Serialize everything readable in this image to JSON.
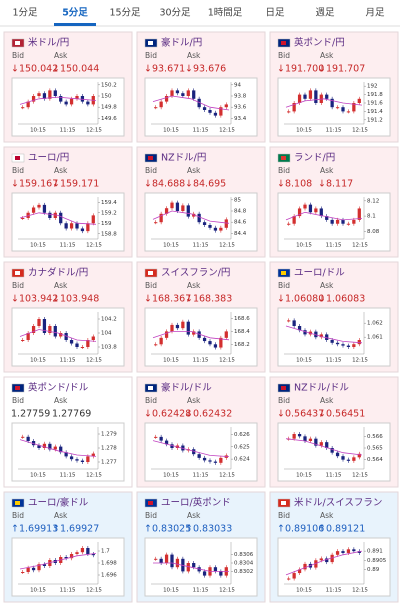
{
  "tabs": [
    "1分足",
    "5分足",
    "15分足",
    "30分足",
    "1時間足",
    "日足",
    "週足",
    "月足"
  ],
  "active_tab": 1,
  "cards": [
    {
      "name": "米ドル/円",
      "bid_label": "Bid",
      "ask_label": "Ask",
      "bid": "↓150.042",
      "ask": "↓150.044",
      "color": "#c62828",
      "background": "#fdeef0",
      "chart": {
        "ylim": [
          149.5,
          150.25
        ],
        "yticks": [
          150.2,
          150,
          149.8,
          149.6
        ],
        "xticks": [
          "10:15",
          "11:15",
          "12:15"
        ],
        "closes": [
          149.8,
          149.9,
          150.0,
          150.05,
          149.95,
          150.1,
          150.0,
          149.9,
          149.85,
          149.95,
          150.0,
          149.9,
          149.85,
          150.0
        ],
        "ma": [
          149.85,
          149.95,
          149.98,
          149.95,
          149.92
        ]
      }
    },
    {
      "name": "豪ドル/円",
      "bid_label": "Bid",
      "ask_label": "Ask",
      "bid": "↓93.671",
      "ask": "↓93.676",
      "color": "#c62828",
      "background": "#fdeef0",
      "chart": {
        "ylim": [
          93.3,
          94.05
        ],
        "yticks": [
          94,
          93.8,
          93.6,
          93.4
        ],
        "xticks": [
          "10:15",
          "11:15",
          "12:15"
        ],
        "closes": [
          93.6,
          93.7,
          93.8,
          93.9,
          93.85,
          93.8,
          93.9,
          93.75,
          93.6,
          93.55,
          93.5,
          93.45,
          93.6,
          93.65
        ],
        "ma": [
          93.7,
          93.8,
          93.75,
          93.6,
          93.55
        ]
      }
    },
    {
      "name": "英ポンド/円",
      "bid_label": "Bid",
      "ask_label": "Ask",
      "bid": "↓191.700",
      "ask": "↓191.707",
      "color": "#c62828",
      "background": "#fdeef0",
      "chart": {
        "ylim": [
          191.1,
          192.1
        ],
        "yticks": [
          192,
          191.8,
          191.6,
          191.4,
          191.2
        ],
        "xticks": [
          "10:15",
          "11:15",
          "12:15"
        ],
        "closes": [
          191.4,
          191.6,
          191.8,
          191.7,
          191.9,
          191.6,
          191.8,
          191.7,
          191.5,
          191.5,
          191.4,
          191.4,
          191.6,
          191.7
        ],
        "ma": [
          191.5,
          191.65,
          191.7,
          191.6,
          191.55
        ]
      }
    },
    {
      "name": "ユーロ/円",
      "bid_label": "Bid",
      "ask_label": "Ask",
      "bid": "↓159.167",
      "ask": "↓159.171",
      "color": "#c62828",
      "background": "#fdeef0",
      "chart": {
        "ylim": [
          158.7,
          159.5
        ],
        "yticks": [
          159.4,
          159.2,
          159,
          158.8
        ],
        "xticks": [
          "10:15",
          "11:15",
          "12:15"
        ],
        "closes": [
          159.1,
          159.2,
          159.3,
          159.35,
          159.2,
          159.1,
          159.2,
          159.0,
          158.9,
          159.0,
          158.9,
          158.85,
          159.0,
          159.15
        ],
        "ma": [
          159.1,
          159.2,
          159.15,
          159.0,
          158.98
        ]
      }
    },
    {
      "name": "NZドル/円",
      "bid_label": "Bid",
      "ask_label": "Ask",
      "bid": "↓84.688",
      "ask": "↓84.695",
      "color": "#c62828",
      "background": "#fdeef0",
      "chart": {
        "ylim": [
          84.3,
          85.05
        ],
        "yticks": [
          85,
          84.8,
          84.6,
          84.4
        ],
        "xticks": [
          "10:15",
          "11:15",
          "12:15"
        ],
        "closes": [
          84.6,
          84.75,
          84.85,
          84.95,
          84.8,
          84.9,
          84.7,
          84.75,
          84.6,
          84.55,
          84.5,
          84.45,
          84.5,
          84.65
        ],
        "ma": [
          84.65,
          84.8,
          84.75,
          84.62,
          84.58
        ]
      }
    },
    {
      "name": "ランド/円",
      "bid_label": "Bid",
      "ask_label": "Ask",
      "bid": "↓8.108",
      "ask": "↓8.117",
      "color": "#c62828",
      "background": "#fdeef0",
      "chart": {
        "ylim": [
          8.07,
          8.125
        ],
        "yticks": [
          8.12,
          8.1,
          8.08
        ],
        "xticks": [
          "10:15",
          "11:15",
          "12:15"
        ],
        "closes": [
          8.09,
          8.1,
          8.11,
          8.115,
          8.105,
          8.11,
          8.1,
          8.095,
          8.09,
          8.095,
          8.09,
          8.09,
          8.095,
          8.11
        ],
        "ma": [
          8.095,
          8.105,
          8.1,
          8.095,
          8.097
        ]
      }
    },
    {
      "name": "カナダドル/円",
      "bid_label": "Bid",
      "ask_label": "Ask",
      "bid": "↓103.942",
      "ask": "↓103.948",
      "color": "#c62828",
      "background": "#fdeef0",
      "chart": {
        "ylim": [
          103.7,
          104.3
        ],
        "yticks": [
          104.2,
          104,
          103.8
        ],
        "xticks": [
          "10:15",
          "11:15",
          "12:15"
        ],
        "closes": [
          103.9,
          104.0,
          104.1,
          104.2,
          104.0,
          104.1,
          103.95,
          104.0,
          103.9,
          103.85,
          103.8,
          103.8,
          103.9,
          103.95
        ],
        "ma": [
          103.95,
          104.05,
          104.0,
          103.9,
          103.88
        ]
      }
    },
    {
      "name": "スイスフラン/円",
      "bid_label": "Bid",
      "ask_label": "Ask",
      "bid": "↓168.367",
      "ask": "↓168.383",
      "color": "#c62828",
      "background": "#fdeef0",
      "chart": {
        "ylim": [
          168.05,
          168.7
        ],
        "yticks": [
          168.6,
          168.4,
          168.2
        ],
        "xticks": [
          "10:15",
          "11:15",
          "12:15"
        ],
        "closes": [
          168.2,
          168.3,
          168.4,
          168.5,
          168.45,
          168.55,
          168.35,
          168.4,
          168.3,
          168.25,
          168.2,
          168.15,
          168.3,
          168.4
        ],
        "ma": [
          168.3,
          168.4,
          168.4,
          168.3,
          168.27
        ]
      }
    },
    {
      "name": "ユーロ/ドル",
      "bid_label": "Bid",
      "ask_label": "Ask",
      "bid": "↓1.06080",
      "ask": "↓1.06083",
      "color": "#c62828",
      "background": "#fdeef0",
      "chart": {
        "ylim": [
          1.0598,
          1.0628
        ],
        "yticks": [
          1.062,
          1.061
        ],
        "xticks": [
          "10:15",
          "11:15",
          "12:15"
        ],
        "closes": [
          1.0622,
          1.0618,
          1.0615,
          1.0612,
          1.0614,
          1.061,
          1.0612,
          1.0608,
          1.0606,
          1.0605,
          1.0604,
          1.0603,
          1.0605,
          1.0608
        ],
        "ma": [
          1.0618,
          1.0614,
          1.061,
          1.0607,
          1.0606
        ]
      }
    },
    {
      "name": "英ポンド/ドル",
      "bid_label": "Bid",
      "ask_label": "Ask",
      "bid": "1.27759",
      "ask": "1.27769",
      "color": "#333333",
      "background": "#ffffff",
      "chart": {
        "ylim": [
          1.2765,
          1.2795
        ],
        "yticks": [
          1.279,
          1.278,
          1.277
        ],
        "xticks": [
          "10:15",
          "11:15",
          "12:15"
        ],
        "closes": [
          1.2788,
          1.2785,
          1.2782,
          1.278,
          1.2783,
          1.2779,
          1.2781,
          1.2777,
          1.2774,
          1.2772,
          1.2771,
          1.277,
          1.2774,
          1.2776
        ],
        "ma": [
          1.2786,
          1.2782,
          1.2778,
          1.2775,
          1.2774
        ]
      }
    },
    {
      "name": "豪ドル/ドル",
      "bid_label": "Bid",
      "ask_label": "Ask",
      "bid": "↓0.62428",
      "ask": "↓0.62432",
      "color": "#c62828",
      "background": "#fdeef0",
      "chart": {
        "ylim": [
          0.6232,
          0.6266
        ],
        "yticks": [
          0.626,
          0.625,
          0.624
        ],
        "xticks": [
          "10:15",
          "11:15",
          "12:15"
        ],
        "closes": [
          0.6258,
          0.6255,
          0.6252,
          0.6249,
          0.6251,
          0.6247,
          0.6248,
          0.6244,
          0.6241,
          0.6239,
          0.6238,
          0.6237,
          0.6241,
          0.6243
        ],
        "ma": [
          0.6255,
          0.6251,
          0.6247,
          0.6243,
          0.6242
        ]
      }
    },
    {
      "name": "NZドル/ドル",
      "bid_label": "Bid",
      "ask_label": "Ask",
      "bid": "↓0.56437",
      "ask": "↓0.56451",
      "color": "#c62828",
      "background": "#fdeef0",
      "chart": {
        "ylim": [
          0.5632,
          0.5668
        ],
        "yticks": [
          0.566,
          0.565,
          0.564
        ],
        "xticks": [
          "10:15",
          "11:15",
          "12:15"
        ],
        "closes": [
          0.5658,
          0.5662,
          0.566,
          0.5656,
          0.5658,
          0.5652,
          0.5655,
          0.565,
          0.5646,
          0.5643,
          0.564,
          0.5639,
          0.5642,
          0.5645
        ],
        "ma": [
          0.5658,
          0.5656,
          0.5651,
          0.5646,
          0.5644
        ]
      }
    },
    {
      "name": "ユーロ/豪ドル",
      "bid_label": "Bid",
      "ask_label": "Ask",
      "bid": "↑1.69913",
      "ask": "↑1.69927",
      "color": "#1e5fbf",
      "background": "#e8f3fc",
      "chart": {
        "ylim": [
          1.6945,
          1.7015
        ],
        "yticks": [
          1.7,
          1.698,
          1.696
        ],
        "xticks": [
          "10:15",
          "11:15",
          "12:15"
        ],
        "closes": [
          1.6965,
          1.6972,
          1.6968,
          1.6978,
          1.6975,
          1.6985,
          1.698,
          1.699,
          1.6988,
          1.6995,
          1.6998,
          1.7005,
          1.6995,
          1.6993
        ],
        "ma": [
          1.697,
          1.6976,
          1.6984,
          1.6992,
          1.6996
        ]
      }
    },
    {
      "name": "ユーロ/英ポンド",
      "bid_label": "Bid",
      "ask_label": "Ask",
      "bid": "↑0.83025",
      "ask": "↑0.83033",
      "color": "#1e5fbf",
      "background": "#e8f3fc",
      "chart": {
        "ylim": [
          0.8299,
          0.8309
        ],
        "yticks": [
          0.8306,
          0.8304,
          0.8302
        ],
        "xticks": [
          "10:15",
          "11:15",
          "12:15"
        ],
        "closes": [
          0.8305,
          0.8304,
          0.8306,
          0.8303,
          0.8305,
          0.8302,
          0.8304,
          0.8303,
          0.8302,
          0.8301,
          0.8303,
          0.8302,
          0.8301,
          0.8303
        ],
        "ma": [
          0.8304,
          0.8304,
          0.8303,
          0.8302,
          0.8302
        ]
      }
    },
    {
      "name": "米ドル/スイスフラン",
      "bid_label": "Bid",
      "ask_label": "Ask",
      "bid": "↑0.89106",
      "ask": "↑0.89121",
      "color": "#1e5fbf",
      "background": "#e8f3fc",
      "chart": {
        "ylim": [
          0.8892,
          0.8915
        ],
        "yticks": [
          0.891,
          0.8905,
          0.89
        ],
        "xticks": [
          "10:15",
          "11:15",
          "12:15"
        ],
        "closes": [
          0.8895,
          0.8898,
          0.89,
          0.8903,
          0.8901,
          0.8905,
          0.8906,
          0.8904,
          0.8908,
          0.891,
          0.8909,
          0.8911,
          0.891,
          0.8909
        ],
        "ma": [
          0.8897,
          0.8901,
          0.8905,
          0.8908,
          0.891
        ]
      }
    }
  ]
}
